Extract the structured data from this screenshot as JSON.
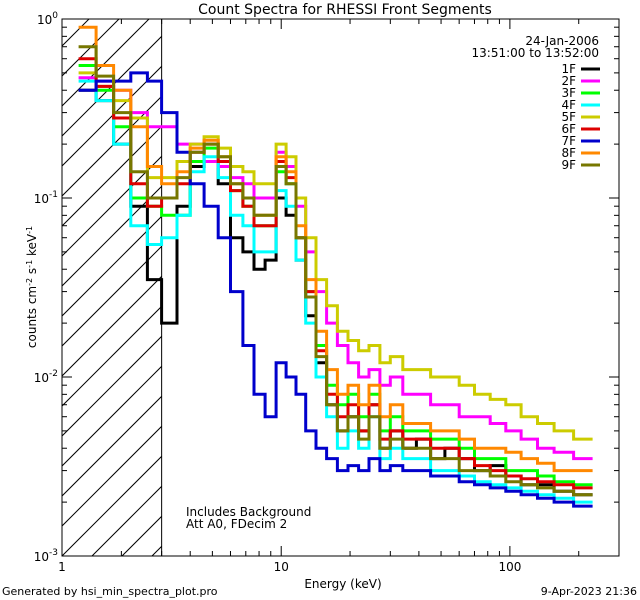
{
  "chart_data": {
    "type": "line",
    "title": "Count Spectra for RHESSI Front Segments",
    "xlabel": "Energy (keV)",
    "ylabel_html": "counts cm^-2 s^-1 keV^-1",
    "ylabel_parts": [
      "counts cm",
      "-2",
      " s",
      "-1",
      " keV",
      "-1"
    ],
    "xscale": "log",
    "yscale": "log",
    "xlim": [
      1.1,
      300
    ],
    "ylim": [
      0.001,
      1.0
    ],
    "x_ticks": [
      {
        "value": 1,
        "label": "1"
      },
      {
        "value": 10,
        "label": "10"
      },
      {
        "value": 100,
        "label": "100"
      }
    ],
    "y_ticks": [
      {
        "value": 1,
        "label": "10",
        "exp": "0"
      },
      {
        "value": 0.1,
        "label": "10",
        "exp": "-1"
      },
      {
        "value": 0.01,
        "label": "10",
        "exp": "-2"
      },
      {
        "value": 0.001,
        "label": "10",
        "exp": "-3"
      }
    ],
    "hatched_region": {
      "x_from": 1.1,
      "x_to": 3.0
    },
    "legend": {
      "placement": "top-right",
      "date": "24-Jan-2006",
      "time_range": "13:51:00 to 13:52:00"
    },
    "annotations": [
      "Includes Background",
      "Att A0, FDecim 2"
    ],
    "footer_left": "Generated by hsi_min_spectra_plot.pro",
    "footer_right": "9-Apr-2023 21:36",
    "series": [
      {
        "name": "1F",
        "color": "#000000",
        "values": [
          0.4,
          0.35,
          0.2,
          0.09,
          0.035,
          0.02,
          0.09,
          0.15,
          0.16,
          0.12,
          0.06,
          0.05,
          0.04,
          0.045,
          0.1,
          0.08,
          0.045,
          0.022,
          0.012,
          0.007,
          0.005,
          0.006,
          0.005,
          0.007,
          0.004,
          0.005,
          0.004,
          0.0045,
          0.0035,
          0.004,
          0.0035,
          0.003,
          0.0032,
          0.0028,
          0.0025,
          0.0025,
          0.0023,
          0.0022
        ]
      },
      {
        "name": "2F",
        "color": "#ff00ff",
        "values": [
          0.47,
          0.45,
          0.4,
          0.3,
          0.25,
          0.25,
          0.2,
          0.2,
          0.16,
          0.15,
          0.13,
          0.12,
          0.1,
          0.1,
          0.18,
          0.15,
          0.09,
          0.05,
          0.03,
          0.02,
          0.015,
          0.012,
          0.01,
          0.011,
          0.009,
          0.01,
          0.008,
          0.008,
          0.007,
          0.007,
          0.006,
          0.006,
          0.0055,
          0.005,
          0.0045,
          0.004,
          0.0038,
          0.0035
        ]
      },
      {
        "name": "3F",
        "color": "#00ff00",
        "values": [
          0.55,
          0.4,
          0.25,
          0.1,
          0.09,
          0.08,
          0.08,
          0.16,
          0.19,
          0.16,
          0.11,
          0.09,
          0.07,
          0.07,
          0.14,
          0.12,
          0.06,
          0.03,
          0.015,
          0.009,
          0.007,
          0.008,
          0.006,
          0.008,
          0.005,
          0.006,
          0.005,
          0.005,
          0.0045,
          0.0045,
          0.004,
          0.0035,
          0.0035,
          0.003,
          0.003,
          0.0028,
          0.0026,
          0.0025
        ]
      },
      {
        "name": "4F",
        "color": "#00ffff",
        "values": [
          0.45,
          0.35,
          0.2,
          0.07,
          0.055,
          0.06,
          0.08,
          0.14,
          0.17,
          0.13,
          0.08,
          0.07,
          0.05,
          0.05,
          0.11,
          0.09,
          0.045,
          0.02,
          0.01,
          0.006,
          0.004,
          0.005,
          0.004,
          0.006,
          0.0035,
          0.004,
          0.0035,
          0.0035,
          0.003,
          0.003,
          0.0028,
          0.0026,
          0.0025,
          0.0024,
          0.0023,
          0.0022,
          0.0021,
          0.002
        ]
      },
      {
        "name": "5F",
        "color": "#cccc00",
        "values": [
          0.5,
          0.42,
          0.35,
          0.28,
          0.13,
          0.13,
          0.16,
          0.2,
          0.22,
          0.19,
          0.15,
          0.14,
          0.12,
          0.12,
          0.2,
          0.17,
          0.1,
          0.06,
          0.035,
          0.025,
          0.018,
          0.016,
          0.014,
          0.015,
          0.012,
          0.013,
          0.011,
          0.011,
          0.01,
          0.01,
          0.009,
          0.008,
          0.0075,
          0.007,
          0.006,
          0.0055,
          0.005,
          0.0045
        ]
      },
      {
        "name": "6F",
        "color": "#dd0000",
        "values": [
          0.6,
          0.42,
          0.28,
          0.12,
          0.09,
          0.1,
          0.12,
          0.18,
          0.2,
          0.16,
          0.11,
          0.09,
          0.07,
          0.07,
          0.16,
          0.13,
          0.06,
          0.03,
          0.014,
          0.008,
          0.006,
          0.007,
          0.005,
          0.007,
          0.0045,
          0.005,
          0.0045,
          0.0045,
          0.004,
          0.004,
          0.0035,
          0.0032,
          0.003,
          0.0028,
          0.0027,
          0.0026,
          0.0025,
          0.0024
        ]
      },
      {
        "name": "7F",
        "color": "#0000cc",
        "values": [
          0.4,
          0.45,
          0.45,
          0.5,
          0.45,
          0.3,
          0.18,
          0.12,
          0.09,
          0.06,
          0.03,
          0.015,
          0.008,
          0.006,
          0.012,
          0.01,
          0.008,
          0.005,
          0.004,
          0.0035,
          0.003,
          0.0032,
          0.003,
          0.0035,
          0.003,
          0.0032,
          0.003,
          0.003,
          0.0028,
          0.0028,
          0.0026,
          0.0025,
          0.0024,
          0.0023,
          0.0022,
          0.0021,
          0.002,
          0.0019
        ]
      },
      {
        "name": "8F",
        "color": "#ff8800",
        "values": [
          0.9,
          0.55,
          0.4,
          0.25,
          0.15,
          0.12,
          0.14,
          0.19,
          0.21,
          0.17,
          0.12,
          0.1,
          0.08,
          0.08,
          0.17,
          0.14,
          0.07,
          0.035,
          0.018,
          0.011,
          0.008,
          0.009,
          0.007,
          0.009,
          0.006,
          0.007,
          0.0055,
          0.0055,
          0.005,
          0.005,
          0.0045,
          0.004,
          0.004,
          0.0038,
          0.0035,
          0.0033,
          0.003,
          0.003
        ]
      },
      {
        "name": "9F",
        "color": "#777700",
        "values": [
          0.7,
          0.48,
          0.3,
          0.14,
          0.1,
          0.1,
          0.13,
          0.18,
          0.2,
          0.17,
          0.12,
          0.1,
          0.08,
          0.08,
          0.15,
          0.12,
          0.06,
          0.028,
          0.013,
          0.007,
          0.005,
          0.006,
          0.0045,
          0.006,
          0.004,
          0.0045,
          0.004,
          0.004,
          0.0035,
          0.0035,
          0.003,
          0.003,
          0.0028,
          0.0026,
          0.0025,
          0.0024,
          0.0023,
          0.0022
        ]
      }
    ],
    "x_bin_edges": [
      1.3,
      1.55,
      1.85,
      2.2,
      2.6,
      3.0,
      3.5,
      4.0,
      4.6,
      5.3,
      6.0,
      6.8,
      7.6,
      8.5,
      9.5,
      10.5,
      11.6,
      12.8,
      14.2,
      15.8,
      17.6,
      19.6,
      21.8,
      24.2,
      27.0,
      30.0,
      34.0,
      39.0,
      45.0,
      52.0,
      60.0,
      70.0,
      82.0,
      96.0,
      112.0,
      132.0,
      156.0,
      190.0,
      230.0
    ]
  }
}
